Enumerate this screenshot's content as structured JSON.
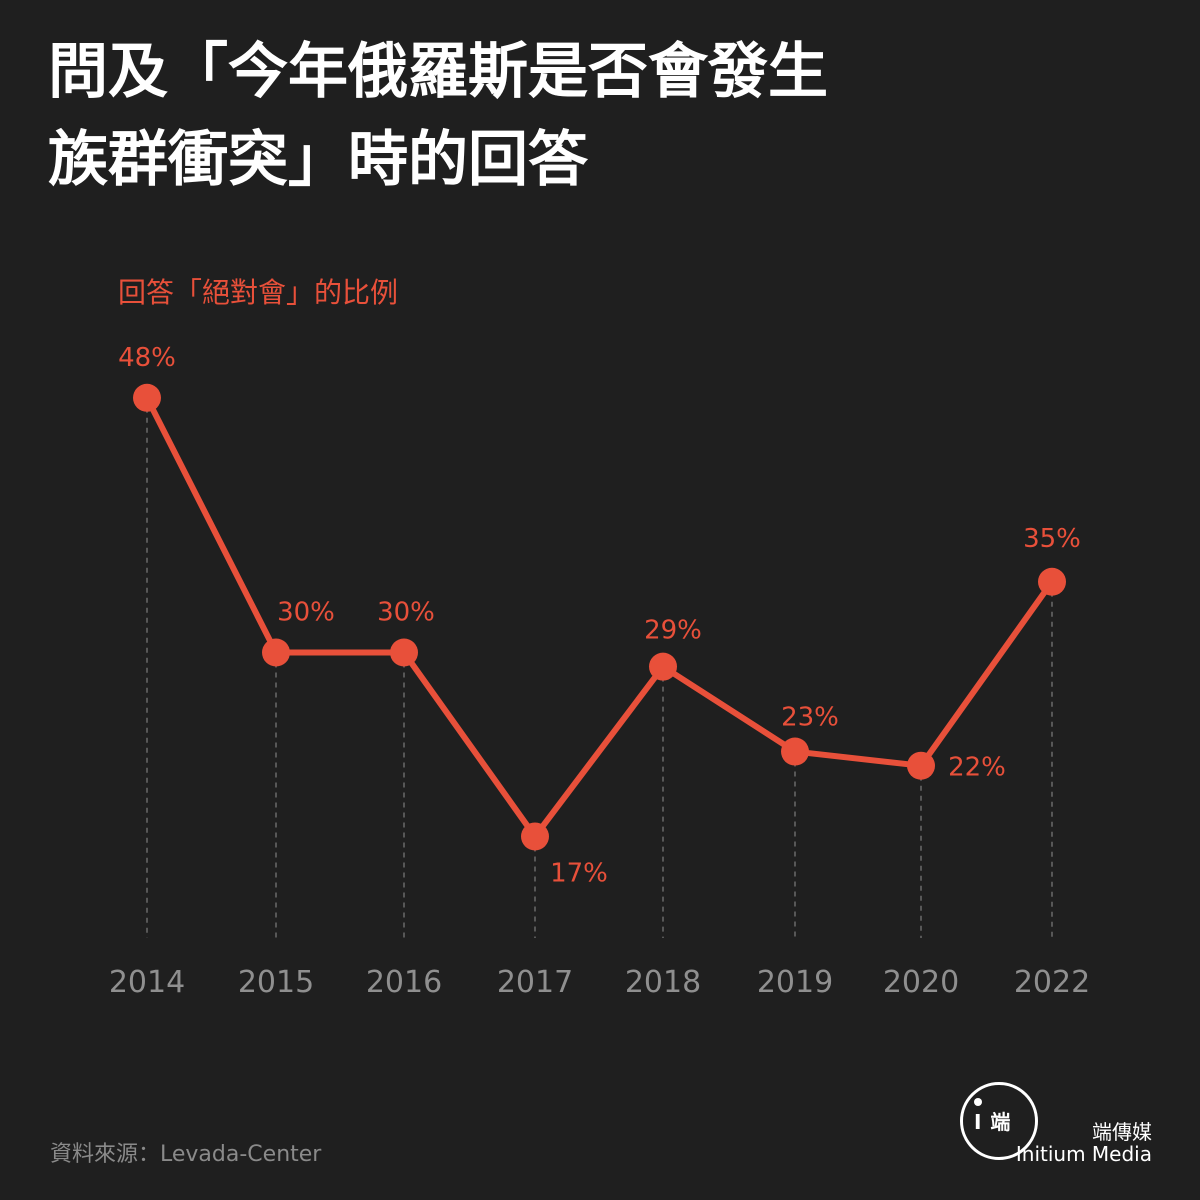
{
  "title": {
    "line1": "問及「今年俄羅斯是否會發生",
    "line2": "族群衝突」時的回答"
  },
  "chart_data": {
    "type": "line",
    "title": "問及「今年俄羅斯是否會發生族群衝突」時的回答",
    "ylabel": "回答「絕對會」的比例",
    "categories": [
      "2014",
      "2015",
      "2016",
      "2017",
      "2018",
      "2019",
      "2020",
      "2022"
    ],
    "series": [
      {
        "values": [
          48,
          30,
          30,
          17,
          29,
          23,
          22,
          35
        ]
      }
    ],
    "data_labels": [
      "48%",
      "30%",
      "30%",
      "17%",
      "29%",
      "23%",
      "22%",
      "35%"
    ],
    "ylim": [
      0,
      60
    ],
    "grid": "vertical dashed drop lines",
    "color": "#e8503a"
  },
  "source": "資料來源：Levada-Center",
  "brand": {
    "logo_glyph": "I 端",
    "name_cn": "端傳媒",
    "name_en": "Initium Media"
  }
}
